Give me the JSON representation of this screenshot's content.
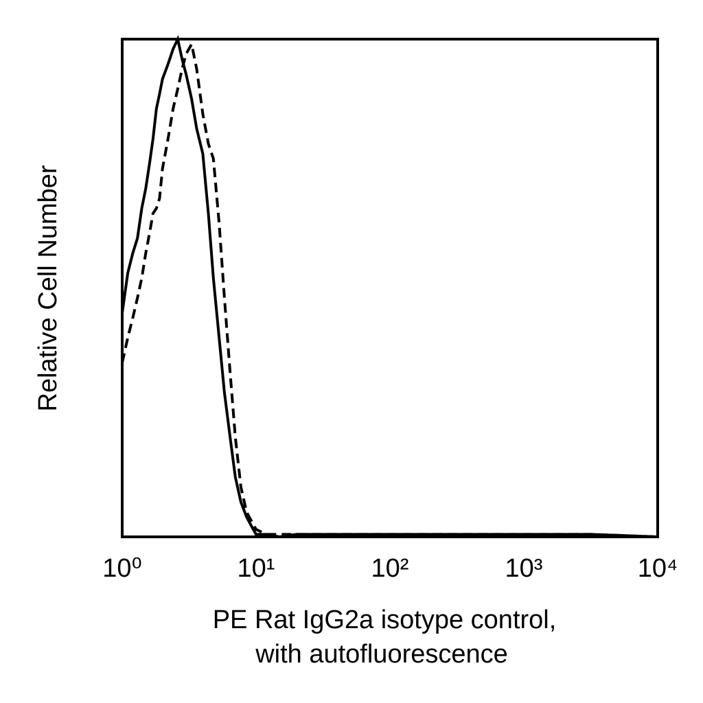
{
  "chart_data": {
    "type": "line",
    "y_label": "Relative Cell Number",
    "x_label": [
      "PE Rat IgG2a isotype control,",
      "with autofluorescence"
    ],
    "x": [
      1,
      1.1,
      1.2,
      1.3,
      1.4,
      1.5,
      1.6,
      1.7,
      1.8,
      1.9,
      2,
      2.2,
      2.4,
      2.6,
      2.8,
      3,
      3.3,
      3.6,
      4,
      4.4,
      4.8,
      5.3,
      5.8,
      6.4,
      7,
      7.7,
      8.5,
      9.3,
      10,
      12,
      15,
      20,
      30,
      80,
      120,
      200,
      1000,
      3200,
      10000
    ],
    "series": [
      {
        "color": "#000000",
        "dashed": false,
        "values": [
          45,
          53,
          57,
          60,
          66,
          70,
          75,
          80,
          86,
          89,
          92,
          95,
          98,
          100,
          96,
          93,
          88,
          82,
          77,
          65,
          52,
          40,
          29,
          20,
          12,
          7,
          4,
          2,
          0.5,
          0.5,
          0,
          0.5,
          0.5,
          0.5,
          0.5,
          0.5,
          0.5,
          0.5,
          0
        ]
      },
      {
        "color": "#000000",
        "dashed": true,
        "values": [
          35,
          40,
          44,
          48,
          52,
          57,
          61,
          65,
          66,
          68,
          74,
          80,
          86,
          90,
          94,
          97,
          99,
          94,
          85,
          79,
          76,
          63,
          48,
          33,
          20,
          10,
          5,
          3,
          1.5,
          0.5,
          0.5,
          0.5,
          0.5,
          0.5,
          0.5,
          0.5,
          0.5,
          0.5,
          0
        ]
      }
    ],
    "xscale": "log",
    "xlim": [
      1,
      10000
    ],
    "xticks": [
      {
        "value": 1,
        "label": "10⁰"
      },
      {
        "value": 10,
        "label": "10¹"
      },
      {
        "value": 100,
        "label": "10²"
      },
      {
        "value": 1000,
        "label": "10³"
      },
      {
        "value": 10000,
        "label": "10⁴"
      }
    ],
    "ylim": [
      0,
      100
    ],
    "grid": false
  }
}
